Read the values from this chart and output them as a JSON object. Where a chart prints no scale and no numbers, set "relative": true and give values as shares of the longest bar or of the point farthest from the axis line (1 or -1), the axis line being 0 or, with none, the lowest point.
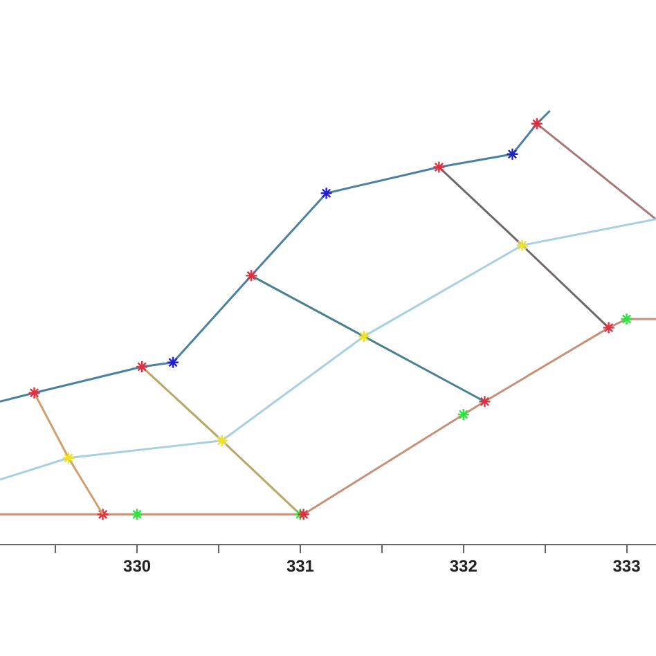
{
  "chart_data": {
    "type": "line",
    "relative": true,
    "xlim": [
      329.16,
      333.18
    ],
    "xticks": [
      {
        "value": 329.5,
        "label": null
      },
      330,
      {
        "value": 330.5,
        "label": null
      },
      331,
      {
        "value": 331.5,
        "label": null
      },
      332,
      {
        "value": 332.5,
        "label": null
      },
      333
    ],
    "grid": false,
    "legend": false,
    "marker": "cross",
    "tick_labels": "x",
    "series": [
      {
        "color": "#4a80a0",
        "x": [
          329.16,
          329.37,
          330.03,
          330.22,
          330.7,
          331.16,
          331.85,
          332.3,
          332.45,
          332.53
        ],
        "values": [
          0.33,
          0.35,
          0.41,
          0.42,
          0.62,
          0.81,
          0.87,
          0.9,
          0.97,
          1.0
        ],
        "colors": [
          null,
          "#e03040",
          "#e03040",
          "#2020d0",
          "#e03040",
          "#2020d0",
          "#e03040",
          "#2020d0",
          "#e03040",
          null
        ]
      },
      {
        "color": "#a8d0e0",
        "x": [
          329.16,
          329.58,
          330.52,
          331.39,
          332.36,
          333.18
        ],
        "values": [
          0.15,
          0.2,
          0.24,
          0.48,
          0.69,
          0.75
        ],
        "colors": [
          null,
          "#f0e020",
          "#f0e020",
          "#f0e020",
          "#f0e020",
          null
        ]
      },
      {
        "color": "#d0a070",
        "x": [
          329.37,
          329.58,
          329.79
        ],
        "values": [
          0.35,
          0.2,
          0.07
        ],
        "marker": "none"
      },
      {
        "color": "#c89078",
        "x": [
          329.16,
          329.79,
          330.0,
          331.0,
          331.02,
          332.0,
          332.13,
          332.89,
          333.0,
          333.18
        ],
        "values": [
          0.07,
          0.07,
          0.07,
          0.07,
          0.07,
          0.3,
          0.33,
          0.5,
          0.52,
          0.52
        ],
        "colors": [
          null,
          "#e03040",
          "#30e040",
          "#30e040",
          "#e03040",
          "#30e040",
          "#e03040",
          "#e03040",
          "#30e040",
          null
        ]
      },
      {
        "color": "#b8a868",
        "x": [
          330.03,
          330.52,
          331.0
        ],
        "values": [
          0.41,
          0.24,
          0.07
        ],
        "marker": "none"
      },
      {
        "color": "#4a8090",
        "x": [
          330.7,
          331.39,
          332.13
        ],
        "values": [
          0.62,
          0.48,
          0.33
        ],
        "marker": "none"
      },
      {
        "color": "#706868",
        "x": [
          331.85,
          332.36,
          332.89
        ],
        "values": [
          0.87,
          0.69,
          0.5
        ],
        "marker": "none"
      },
      {
        "color": "#a87878",
        "x": [
          332.45,
          333.18
        ],
        "values": [
          0.97,
          0.75
        ],
        "marker": "none"
      }
    ]
  }
}
